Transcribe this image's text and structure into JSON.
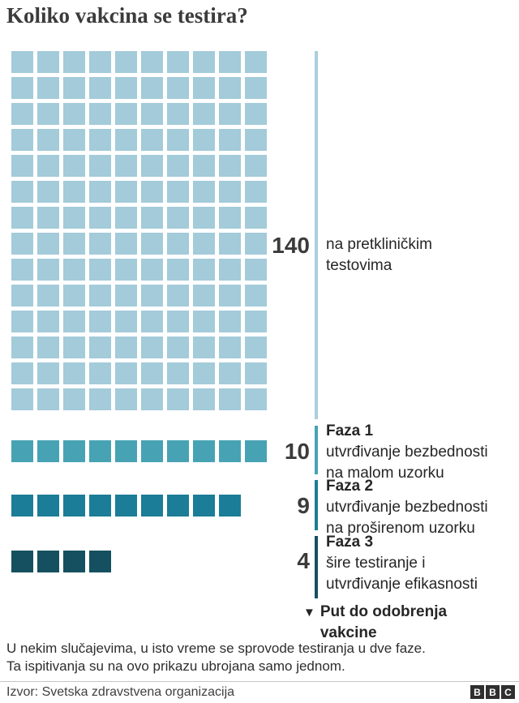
{
  "title": "Koliko vakcina se testira?",
  "chart_data": {
    "type": "waffle",
    "title": "Koliko vakcina se testira?",
    "columns_per_row": 10,
    "axis_line_color": "#a9cfdd",
    "series": [
      {
        "label": "na pretkliničkim testovima",
        "label_lines": [
          "na pretkliničkim",
          "testovima"
        ],
        "value": 140,
        "value_label": "140",
        "color": "#a3cbd9"
      },
      {
        "label": "Faza 1",
        "desc_lines": [
          "utvrđivanje bezbednosti",
          "na malom uzorku"
        ],
        "value": 10,
        "value_label": "10",
        "color": "#47a3b3"
      },
      {
        "label": "Faza 2",
        "desc_lines": [
          "utvrđivanje bezbednosti",
          "na proširenom uzorku"
        ],
        "value": 9,
        "value_label": "9",
        "color": "#1b7d97"
      },
      {
        "label": "Faza 3",
        "desc_lines": [
          "šire testiranje i",
          "utvrđivanje efikasnosti"
        ],
        "value": 4,
        "value_label": "4",
        "color": "#14505f"
      }
    ],
    "annotation": {
      "marker": "▼",
      "lines": [
        "Put do odobrenja",
        "vakcine"
      ]
    }
  },
  "footnote": {
    "line1": "U nekim slučajevima, u isto vreme se sprovode testiranja u dve faze.",
    "line2": "Ta ispitivanja su na ovo prikazu ubrojana samo jednom."
  },
  "source": {
    "label": "Izvor: Svetska zdravstvena organizacija"
  },
  "brand": {
    "letters": [
      "B",
      "B",
      "C"
    ]
  }
}
